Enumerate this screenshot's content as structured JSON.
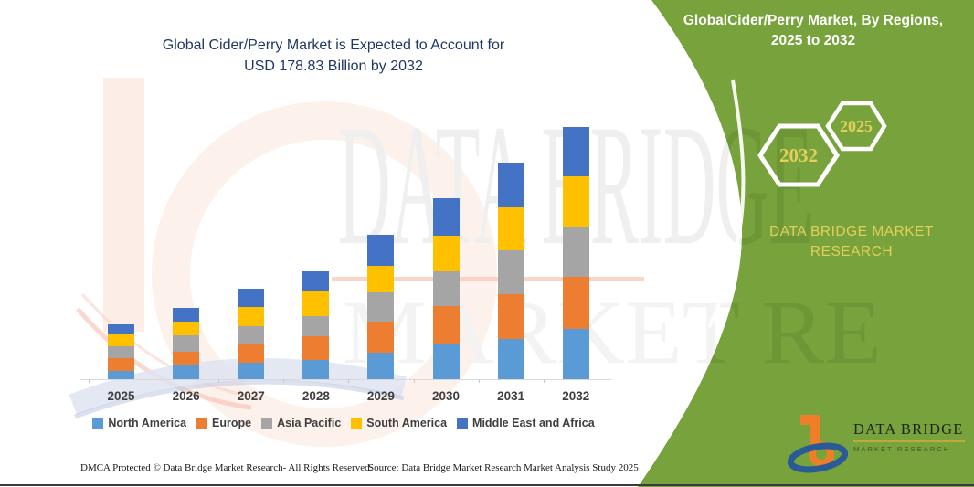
{
  "title": {
    "line1": "Global Cider/Perry Market is Expected to Account for",
    "line2": "USD 178.83 Billion by 2032"
  },
  "green_panel": {
    "heading_line1": "GlobalCider/Perry Market, By Regions,",
    "heading_line2": "2025 to 2032",
    "hexagon_back_year": "2032",
    "hexagon_front_year": "2025",
    "brand_line1": "DATA BRIDGE MARKET",
    "brand_line2": "RESEARCH",
    "green_color": "#77A23C",
    "accent_text_color": "#E4CF5B"
  },
  "watermark": {
    "row1": "DATA BRIDGE",
    "row2": "MARKET RE"
  },
  "chart_data": {
    "type": "bar",
    "stacked": true,
    "unit": "USD Billion",
    "title": "Global Cider/Perry Market is Expected to Account for USD 178.83 Billion by 2032",
    "categories": [
      "2025",
      "2026",
      "2027",
      "2028",
      "2029",
      "2030",
      "2031",
      "2032"
    ],
    "series": [
      {
        "name": "North America",
        "color": "#5B9BD5",
        "values": [
          6.0,
          10.4,
          11.8,
          13.6,
          19.0,
          25.4,
          28.7,
          35.8
        ]
      },
      {
        "name": "Europe",
        "color": "#ED7D31",
        "values": [
          8.6,
          9.1,
          12.9,
          16.8,
          21.5,
          26.5,
          31.2,
          36.6
        ]
      },
      {
        "name": "Asia Pacific",
        "color": "#A5A5A5",
        "values": [
          8.7,
          11.4,
          13.1,
          14.4,
          21.2,
          24.6,
          31.3,
          35.8
        ]
      },
      {
        "name": "South America",
        "color": "#FFC000",
        "values": [
          8.2,
          9.7,
          13.4,
          17.3,
          18.3,
          25.0,
          30.6,
          35.3
        ]
      },
      {
        "name": "Middle East and Africa",
        "color": "#4472C4",
        "values": [
          7.4,
          9.7,
          12.9,
          14.0,
          22.0,
          26.3,
          31.5,
          35.3
        ]
      }
    ],
    "estimated_totals": [
      38.9,
      50.3,
      64.1,
      76.1,
      102.0,
      127.8,
      153.3,
      178.83
    ],
    "stated_total_2032": 178.83,
    "xlabel": "",
    "ylabel": "",
    "gridlines": false,
    "value_labels": false,
    "legend_position": "bottom"
  },
  "footer": {
    "left": "DMCA Protected © Data Bridge Market Research- All Rights Reserved.",
    "right": "Source: Data Bridge Market Research Market Analysis Study 2025"
  },
  "logo": {
    "line1": "DATA BRIDGE",
    "line2": "MARKET RESEARCH"
  }
}
